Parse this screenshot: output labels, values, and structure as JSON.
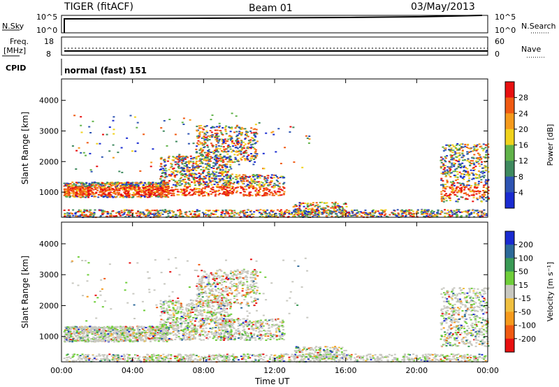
{
  "header": {
    "station": "TIGER (fitACF)",
    "beam": "Beam 01",
    "date": "03/May/2013"
  },
  "top_panels": {
    "nsky_label": "N.Sky",
    "nsky_ticks": [
      "10^5",
      "10^0"
    ],
    "nsearch_label": "N.Search",
    "nsearch_ticks": [
      "10^5",
      "10^0"
    ],
    "freq_label_1": "Freq.",
    "freq_label_2": "[MHz]",
    "freq_ticks": [
      "18",
      "8"
    ],
    "nave_label": "Nave",
    "nave_ticks": [
      "60",
      "0"
    ],
    "cpid_label": "CPID",
    "cpid_value": "normal (fast) 151"
  },
  "colors": {
    "power_scale": [
      "#1a2bd1",
      "#2e54b3",
      "#3f8a5f",
      "#61b34a",
      "#f0d21c",
      "#f59a1c",
      "#f05a12",
      "#e81010"
    ],
    "velocity_scale": [
      "#e81010",
      "#f05a12",
      "#f59a1c",
      "#f0c040",
      "#c8c8c0",
      "#6fce3a",
      "#3a9a55",
      "#2d6a9a",
      "#1a2bd1"
    ]
  },
  "chart_data": [
    {
      "type": "heatmap",
      "title": "",
      "xlabel": "",
      "ylabel": "Slant Range [km]",
      "x_ticks": [
        "00:00",
        "04:00",
        "08:00",
        "12:00",
        "16:00",
        "20:00",
        "00:00"
      ],
      "y_ticks": [
        "1000",
        "2000",
        "3000",
        "4000"
      ],
      "xlim_hours": [
        0,
        24
      ],
      "ylim_km": [
        180,
        4700
      ],
      "colorbar_label": "Power [dB]",
      "colorbar_ticks": [
        "4",
        "8",
        "12",
        "16",
        "20",
        "24",
        "28"
      ],
      "colorbar_range": [
        0,
        30
      ]
    },
    {
      "type": "heatmap",
      "title": "",
      "xlabel": "Time UT",
      "ylabel": "Slant Range [km]",
      "x_ticks": [
        "00:00",
        "04:00",
        "08:00",
        "12:00",
        "16:00",
        "20:00",
        "00:00"
      ],
      "y_ticks": [
        "1000",
        "2000",
        "3000",
        "4000"
      ],
      "xlim_hours": [
        0,
        24
      ],
      "ylim_km": [
        180,
        4700
      ],
      "colorbar_label": "Velocity [m s⁻¹]",
      "colorbar_ticks": [
        "200",
        "100",
        "50",
        "15",
        "-15",
        "-50",
        "-100",
        "-200"
      ],
      "colorbar_range": [
        -250,
        250
      ]
    }
  ]
}
